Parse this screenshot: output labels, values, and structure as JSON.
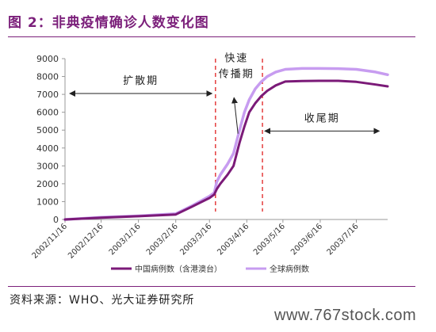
{
  "figure": {
    "title": "图 2：非典疫情确诊人数变化图",
    "source": "资料来源：WHO、光大证券研究所",
    "watermark": "www.767stock.com"
  },
  "chart_data": {
    "type": "line",
    "title": "",
    "xlabel": "",
    "ylabel": "",
    "ylim": [
      0,
      9000
    ],
    "yticks": [
      "0",
      "1000",
      "2000",
      "3000",
      "4000",
      "5000",
      "6000",
      "7000",
      "8000",
      "9000"
    ],
    "xticks": [
      "2002/11/16",
      "2002/12/16",
      "2003/1/16",
      "2003/2/16",
      "2003/3/16",
      "2003/4/16",
      "2003/5/16",
      "2003/6/16",
      "2003/7/16"
    ],
    "x_end": "2003/8/11",
    "grid": false,
    "legend_position": "bottom",
    "colors": {
      "china": "#7b1a78",
      "global": "#c79cf0",
      "phase_line": "#e02020",
      "axis": "#999999"
    },
    "series": [
      {
        "name": "中国病例数（含港澳台）",
        "key": "china",
        "points": [
          [
            "2002/11/16",
            0
          ],
          [
            "2002/12/16",
            100
          ],
          [
            "2003/1/16",
            180
          ],
          [
            "2003/2/16",
            280
          ],
          [
            "2003/3/1",
            700
          ],
          [
            "2003/3/16",
            1200
          ],
          [
            "2003/3/20",
            1400
          ],
          [
            "2003/3/22",
            1700
          ],
          [
            "2003/3/25",
            2000
          ],
          [
            "2003/3/31",
            2500
          ],
          [
            "2003/4/5",
            3000
          ],
          [
            "2003/4/10",
            4300
          ],
          [
            "2003/4/14",
            5200
          ],
          [
            "2003/4/18",
            6000
          ],
          [
            "2003/4/23",
            6500
          ],
          [
            "2003/4/28",
            6900
          ],
          [
            "2003/5/3",
            7200
          ],
          [
            "2003/5/10",
            7500
          ],
          [
            "2003/5/18",
            7720
          ],
          [
            "2003/6/1",
            7750
          ],
          [
            "2003/6/15",
            7760
          ],
          [
            "2003/7/1",
            7760
          ],
          [
            "2003/7/16",
            7700
          ],
          [
            "2003/8/1",
            7550
          ],
          [
            "2003/8/11",
            7450
          ]
        ]
      },
      {
        "name": "全球病例数",
        "key": "global",
        "points": [
          [
            "2002/11/16",
            0
          ],
          [
            "2002/12/16",
            120
          ],
          [
            "2003/1/16",
            200
          ],
          [
            "2003/2/16",
            320
          ],
          [
            "2003/3/1",
            750
          ],
          [
            "2003/3/16",
            1300
          ],
          [
            "2003/3/20",
            1500
          ],
          [
            "2003/3/22",
            2100
          ],
          [
            "2003/3/25",
            2500
          ],
          [
            "2003/3/31",
            3100
          ],
          [
            "2003/4/5",
            3700
          ],
          [
            "2003/4/10",
            5000
          ],
          [
            "2003/4/14",
            6000
          ],
          [
            "2003/4/18",
            6700
          ],
          [
            "2003/4/23",
            7300
          ],
          [
            "2003/4/28",
            7700
          ],
          [
            "2003/5/3",
            8000
          ],
          [
            "2003/5/10",
            8250
          ],
          [
            "2003/5/18",
            8400
          ],
          [
            "2003/6/1",
            8450
          ],
          [
            "2003/6/15",
            8450
          ],
          [
            "2003/7/1",
            8440
          ],
          [
            "2003/7/16",
            8400
          ],
          [
            "2003/8/1",
            8250
          ],
          [
            "2003/8/11",
            8100
          ]
        ]
      }
    ],
    "phase_lines": [
      "2003/3/21",
      "2003/4/29"
    ],
    "annotations": [
      {
        "text": "扩散期",
        "arrow": "both",
        "x_from": "2002/11/20",
        "x_to": "2003/3/18",
        "y": 7050
      },
      {
        "text": "快速传播期",
        "lines": [
          "快速",
          "传播期"
        ],
        "arrow": "up",
        "x": "2003/4/10",
        "y_from": 4800,
        "y_to": 6900
      },
      {
        "text": "收尾期",
        "arrow": "both",
        "x_from": "2003/5/1",
        "x_to": "2003/8/4",
        "y": 4950
      }
    ]
  }
}
